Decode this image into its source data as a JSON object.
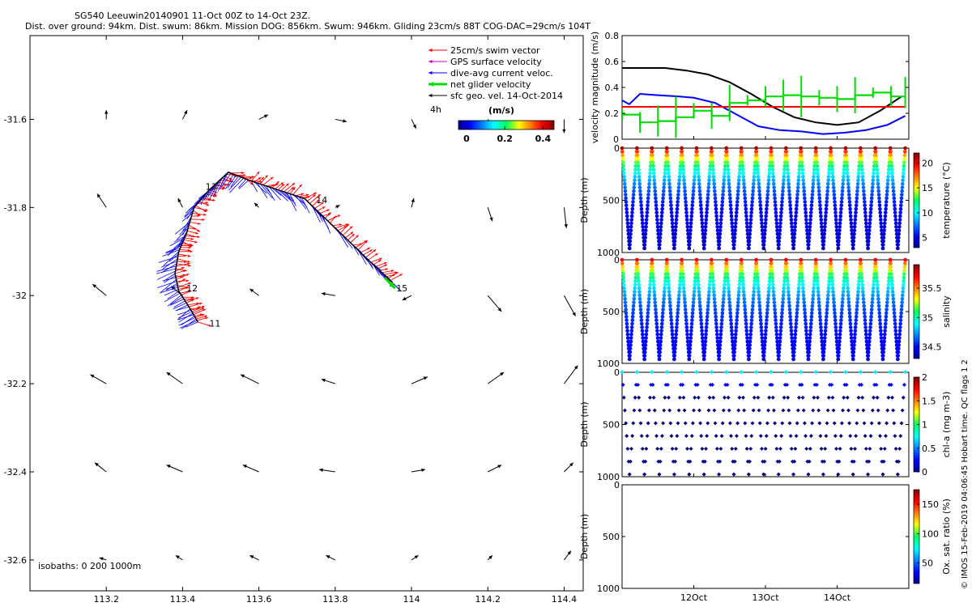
{
  "title_line1": "SG540 Leeuwin20140901 11-Oct 00Z to 14-Oct 23Z.",
  "title_line2": "Dist. over ground: 94km. Dist. swum: 86km. Mission DOG: 856km. Swum: 946km. Gliding 23cm/s 88T COG-DAC=29cm/s 104T",
  "copyright": "© IMOS 15-Feb-2019 04:06:45 Hobart time. QC flags 1 2",
  "chart_data": [
    {
      "type": "scatter",
      "panel": "map",
      "xticks": [
        "113.2",
        "113.4",
        "113.6",
        "113.8",
        "114",
        "114.2",
        "114.4"
      ],
      "yticks": [
        "-31.6",
        "-31.8",
        "-32",
        "-32.2",
        "-32.4",
        "-32.6"
      ],
      "xlim": [
        113.0,
        114.45
      ],
      "ylim": [
        -32.67,
        -31.41
      ],
      "legend": {
        "position": "top-right",
        "entries": [
          {
            "label": "25cm/s swim vector",
            "color": "#ff0000"
          },
          {
            "label": "GPS surface velocity",
            "color": "#cc00cc"
          },
          {
            "label": "dive-avg current veloc.",
            "color": "#0000ff"
          },
          {
            "label": "net glider velocity",
            "color": "#00dd00"
          },
          {
            "label": "sfc geo. vel. 14-Oct-2014",
            "color": "#000000"
          }
        ],
        "scale_label": "4h",
        "colorbar_label": "(m/s)",
        "colorbar_ticks": [
          "0",
          "0.2",
          "0.4"
        ]
      },
      "day_labels": [
        {
          "text": "11",
          "lon": 113.47,
          "lat": -32.07
        },
        {
          "text": "12",
          "lon": 113.41,
          "lat": -31.99
        },
        {
          "text": "13",
          "lon": 113.46,
          "lat": -31.76
        },
        {
          "text": "14",
          "lon": 113.75,
          "lat": -31.79
        },
        {
          "text": "15",
          "lon": 113.96,
          "lat": -31.99
        }
      ],
      "track": [
        [
          113.44,
          -32.06
        ],
        [
          113.42,
          -32.03
        ],
        [
          113.39,
          -31.99
        ],
        [
          113.38,
          -31.95
        ],
        [
          113.39,
          -31.9
        ],
        [
          113.41,
          -31.86
        ],
        [
          113.43,
          -31.8
        ],
        [
          113.47,
          -31.76
        ],
        [
          113.52,
          -31.72
        ],
        [
          113.58,
          -31.74
        ],
        [
          113.65,
          -31.76
        ],
        [
          113.72,
          -31.78
        ],
        [
          113.78,
          -31.83
        ],
        [
          113.84,
          -31.88
        ],
        [
          113.9,
          -31.93
        ],
        [
          113.95,
          -31.97
        ]
      ],
      "net_velocity": {
        "lon": 113.93,
        "lat": -31.96,
        "dlon": 0.06,
        "dlat": -0.06
      },
      "isobaths_label": "isobaths: 0   200  1000m",
      "geo_vectors": [
        [
          113.2,
          -31.6,
          0,
          0.04
        ],
        [
          113.4,
          -31.6,
          0.02,
          0.04
        ],
        [
          113.6,
          -31.6,
          0.04,
          0.02
        ],
        [
          113.8,
          -31.6,
          0.05,
          -0.01
        ],
        [
          114.0,
          -31.6,
          0.02,
          -0.04
        ],
        [
          114.2,
          -31.6,
          0.02,
          -0.03
        ],
        [
          114.4,
          -31.6,
          0.0,
          -0.06
        ],
        [
          113.2,
          -31.8,
          -0.04,
          0.06
        ],
        [
          113.4,
          -31.8,
          -0.02,
          0.04
        ],
        [
          113.6,
          -31.8,
          -0.02,
          0.02
        ],
        [
          113.8,
          -31.8,
          0.02,
          0.01
        ],
        [
          114.0,
          -31.8,
          0.01,
          0.04
        ],
        [
          114.2,
          -31.8,
          0.02,
          -0.06
        ],
        [
          114.4,
          -31.8,
          0.01,
          -0.09
        ],
        [
          113.2,
          -32.0,
          -0.06,
          0.05
        ],
        [
          113.4,
          -32.0,
          -0.05,
          0.04
        ],
        [
          113.6,
          -32.0,
          -0.04,
          0.03
        ],
        [
          113.8,
          -32.0,
          -0.06,
          0.01
        ],
        [
          114.0,
          -32.0,
          -0.04,
          -0.02
        ],
        [
          114.2,
          -32.0,
          0.06,
          -0.07
        ],
        [
          114.4,
          -32.0,
          0.05,
          -0.09
        ],
        [
          113.2,
          -32.2,
          -0.07,
          0.04
        ],
        [
          113.4,
          -32.2,
          -0.07,
          0.05
        ],
        [
          113.6,
          -32.2,
          -0.08,
          0.04
        ],
        [
          113.8,
          -32.2,
          -0.06,
          0.02
        ],
        [
          114.0,
          -32.2,
          0.07,
          0.03
        ],
        [
          114.2,
          -32.2,
          0.07,
          0.05
        ],
        [
          114.4,
          -32.2,
          0.06,
          0.08
        ],
        [
          113.2,
          -32.4,
          -0.05,
          0.04
        ],
        [
          113.4,
          -32.4,
          -0.07,
          0.03
        ],
        [
          113.6,
          -32.4,
          -0.07,
          0.03
        ],
        [
          113.8,
          -32.4,
          -0.07,
          0.01
        ],
        [
          114.0,
          -32.4,
          0.06,
          0.01
        ],
        [
          114.2,
          -32.4,
          0.06,
          0.03
        ],
        [
          114.4,
          -32.4,
          0.04,
          0.04
        ],
        [
          113.2,
          -32.6,
          -0.03,
          0.01
        ],
        [
          113.4,
          -32.6,
          -0.03,
          0.02
        ],
        [
          113.6,
          -32.6,
          -0.04,
          0.02
        ],
        [
          113.8,
          -32.6,
          -0.04,
          0.02
        ],
        [
          114.0,
          -32.6,
          0.03,
          0.02
        ],
        [
          114.2,
          -32.6,
          0.02,
          0.02
        ],
        [
          114.4,
          -32.6,
          0.03,
          0.04
        ]
      ]
    },
    {
      "type": "line",
      "panel": "velocity",
      "ylabel": "velocity magnitude (m/s)",
      "ylim": [
        0,
        0.8
      ],
      "yticks": [
        "0",
        "0.2",
        "0.4",
        "0.6",
        "0.8"
      ],
      "series": [
        {
          "color": "#000000",
          "x": [
            11.0,
            11.3,
            11.6,
            11.9,
            12.2,
            12.5,
            12.8,
            13.1,
            13.4,
            13.7,
            14.0,
            14.3,
            14.6,
            14.9
          ],
          "values": [
            0.55,
            0.55,
            0.55,
            0.53,
            0.5,
            0.44,
            0.35,
            0.25,
            0.17,
            0.13,
            0.11,
            0.13,
            0.22,
            0.33
          ]
        },
        {
          "color": "#0000ff",
          "x": [
            11.0,
            11.1,
            11.25,
            11.5,
            11.8,
            12.0,
            12.3,
            12.6,
            12.9,
            13.2,
            13.5,
            13.8,
            14.1,
            14.4,
            14.7,
            14.95
          ],
          "values": [
            0.3,
            0.27,
            0.35,
            0.34,
            0.33,
            0.32,
            0.28,
            0.19,
            0.1,
            0.07,
            0.06,
            0.04,
            0.05,
            0.07,
            0.11,
            0.18
          ]
        },
        {
          "color": "#ff0000",
          "x": [
            11.0,
            14.95
          ],
          "values": [
            0.25,
            0.25
          ]
        },
        {
          "color": "#00dd00",
          "x": [
            11.0,
            11.25,
            11.5,
            11.75,
            12.0,
            12.25,
            12.5,
            12.75,
            13.0,
            13.25,
            13.5,
            13.75,
            14.0,
            14.25,
            14.5,
            14.75,
            14.95
          ],
          "values": [
            0.19,
            0.13,
            0.14,
            0.17,
            0.22,
            0.18,
            0.28,
            0.3,
            0.33,
            0.34,
            0.33,
            0.32,
            0.31,
            0.34,
            0.36,
            0.33,
            0.36
          ]
        }
      ]
    },
    {
      "type": "scatter",
      "panel": "temperature",
      "ylabel": "Depth (m)",
      "ylim": [
        1000,
        0
      ],
      "yticks": [
        "0",
        "500",
        "1000"
      ],
      "colorbar_label": "temperature (°C)",
      "colorbar_ticks": [
        "5",
        "10",
        "15",
        "20"
      ],
      "colorbar_range": [
        3,
        22
      ],
      "profile": {
        "surface": 21,
        "deep": 4
      }
    },
    {
      "type": "scatter",
      "panel": "salinity",
      "ylabel": "Depth (m)",
      "ylim": [
        1000,
        0
      ],
      "yticks": [
        "0",
        "500",
        "1000"
      ],
      "colorbar_label": "salinity",
      "colorbar_ticks": [
        "34.5",
        "35",
        "35.5"
      ],
      "colorbar_range": [
        34.3,
        35.9
      ],
      "profile": {
        "surface": 35.7,
        "deep": 34.45
      }
    },
    {
      "type": "scatter",
      "panel": "chlorophyll",
      "ylabel": "Depth (m)",
      "ylim": [
        1000,
        0
      ],
      "yticks": [
        "0",
        "500",
        "1000"
      ],
      "colorbar_label": "chl-a (mg m-3)",
      "colorbar_ticks": [
        "0",
        "0.5",
        "1",
        "1.5",
        "2"
      ],
      "colorbar_range": [
        0,
        2
      ],
      "profile": {
        "surface": 0.4,
        "deep": 0.02
      }
    },
    {
      "type": "scatter",
      "panel": "oxygen",
      "ylabel": "Depth (m)",
      "ylim": [
        1000,
        0
      ],
      "yticks": [
        "0",
        "500",
        "1000"
      ],
      "colorbar_label": "Ox. sat. ratio (%)",
      "colorbar_ticks": [
        "50",
        "100",
        "150"
      ],
      "colorbar_range": [
        15,
        175
      ],
      "xticks": [
        "12Oct",
        "13Oct",
        "14Oct"
      ],
      "xtick_values": [
        12,
        13,
        14
      ],
      "xlim": [
        11.0,
        15.0
      ]
    }
  ]
}
